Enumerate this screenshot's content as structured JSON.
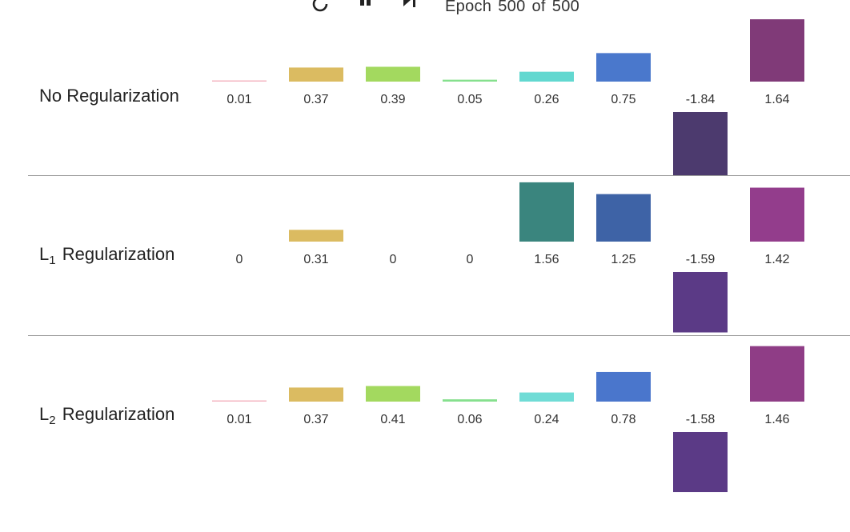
{
  "controls": {
    "reset_icon": "reset-icon",
    "pause_icon": "pause-icon",
    "step_icon": "step-forward-icon"
  },
  "epoch": {
    "word": "Epoch",
    "current": "500",
    "of": "of",
    "total": "500"
  },
  "chart_data": [
    {
      "type": "bar",
      "title": "No Regularization",
      "label_main": "No Regularization",
      "label_sub": "",
      "label_suffix": "",
      "values": [
        0.01,
        0.37,
        0.39,
        0.05,
        0.26,
        0.75,
        -1.84,
        1.64
      ],
      "value_labels": [
        "0.01",
        "0.37",
        "0.39",
        "0.05",
        "0.26",
        "0.75",
        "-1.84",
        "1.64"
      ],
      "colors": [
        "#f4b6c2",
        "#dbbb61",
        "#a3d95f",
        "#86e08e",
        "#62d8d0",
        "#4a78cc",
        "#4c3a6e",
        "#803a78"
      ]
    },
    {
      "type": "bar",
      "title": "L1 Regularization",
      "label_main": "L",
      "label_sub": "1",
      "label_suffix": "Regularization",
      "values": [
        0,
        0.31,
        0,
        0,
        1.56,
        1.25,
        -1.59,
        1.42
      ],
      "value_labels": [
        "0",
        "0.31",
        "0",
        "0",
        "1.56",
        "1.25",
        "-1.59",
        "1.42"
      ],
      "colors": [
        "#f4b6c2",
        "#dbbb61",
        "#a3d95f",
        "#86e08e",
        "#3a857e",
        "#3e63a6",
        "#5b3a86",
        "#933d8c"
      ]
    },
    {
      "type": "bar",
      "title": "L2 Regularization",
      "label_main": "L",
      "label_sub": "2",
      "label_suffix": "Regularization",
      "values": [
        0.01,
        0.37,
        0.41,
        0.06,
        0.24,
        0.78,
        -1.58,
        1.46
      ],
      "value_labels": [
        "0.01",
        "0.37",
        "0.41",
        "0.06",
        "0.24",
        "0.78",
        "-1.58",
        "1.46"
      ],
      "colors": [
        "#f4b6c2",
        "#dbbb61",
        "#a3d95f",
        "#86e08e",
        "#70dcd6",
        "#4a76cc",
        "#5b3a86",
        "#8f3d86"
      ]
    }
  ]
}
